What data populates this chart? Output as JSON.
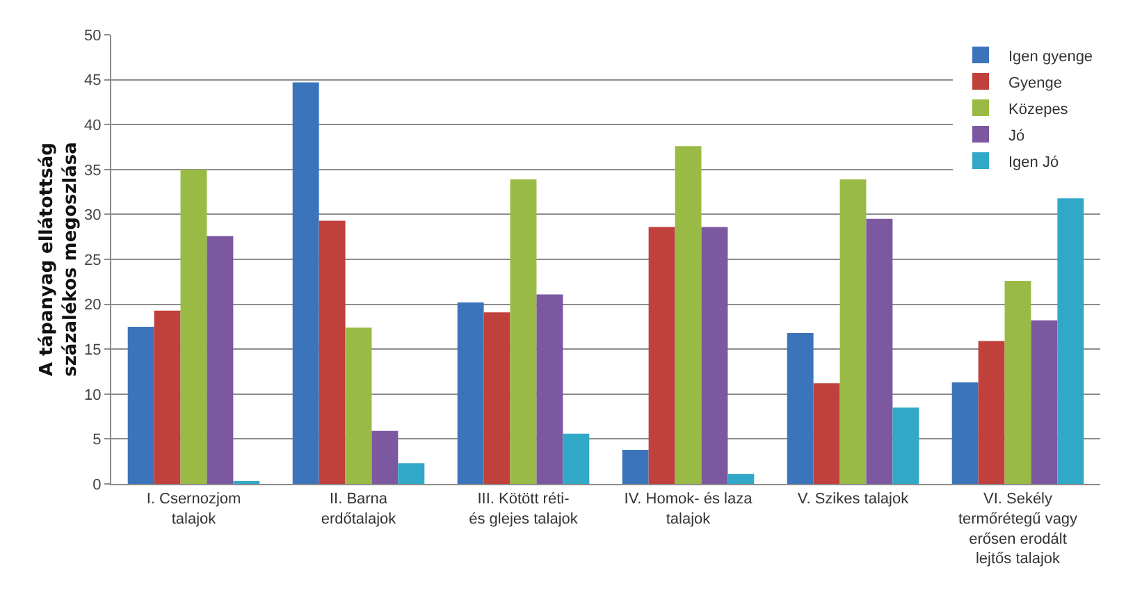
{
  "chart_data": {
    "type": "bar",
    "ylabel": "A tápanyag ellátottság százalékos megoszlása",
    "categories": [
      "I. Csernozjom talajok",
      "II. Barna erdőtalajok",
      "III. Kötött réti- és glejes talajok",
      "IV. Homok- és laza talajok",
      "V. Szikes talajok",
      "VI. Sekély termőrétegű vagy erősen erodált lejtős talajok"
    ],
    "series": [
      {
        "name": "Igen gyenge",
        "color": "#3c74bc",
        "values": [
          17.5,
          44.7,
          20.2,
          3.8,
          16.8,
          11.3
        ]
      },
      {
        "name": "Gyenge",
        "color": "#c0403c",
        "values": [
          19.3,
          29.3,
          19.1,
          28.6,
          11.2,
          15.9
        ]
      },
      {
        "name": "Közepes",
        "color": "#99bb45",
        "values": [
          35,
          17.4,
          33.9,
          37.6,
          33.9,
          22.6
        ]
      },
      {
        "name": "Jó",
        "color": "#7c58a0",
        "values": [
          27.6,
          5.9,
          21.1,
          28.6,
          29.5,
          18.2
        ]
      },
      {
        "name": "Igen Jó",
        "color": "#32a8c8",
        "values": [
          0.3,
          2.3,
          5.6,
          1.1,
          8.5,
          31.8
        ]
      }
    ],
    "ylim": [
      0,
      50
    ],
    "yticks": [
      0,
      5,
      10,
      15,
      20,
      25,
      30,
      35,
      40,
      45,
      50
    ],
    "grid": "y",
    "legend": "top right"
  }
}
